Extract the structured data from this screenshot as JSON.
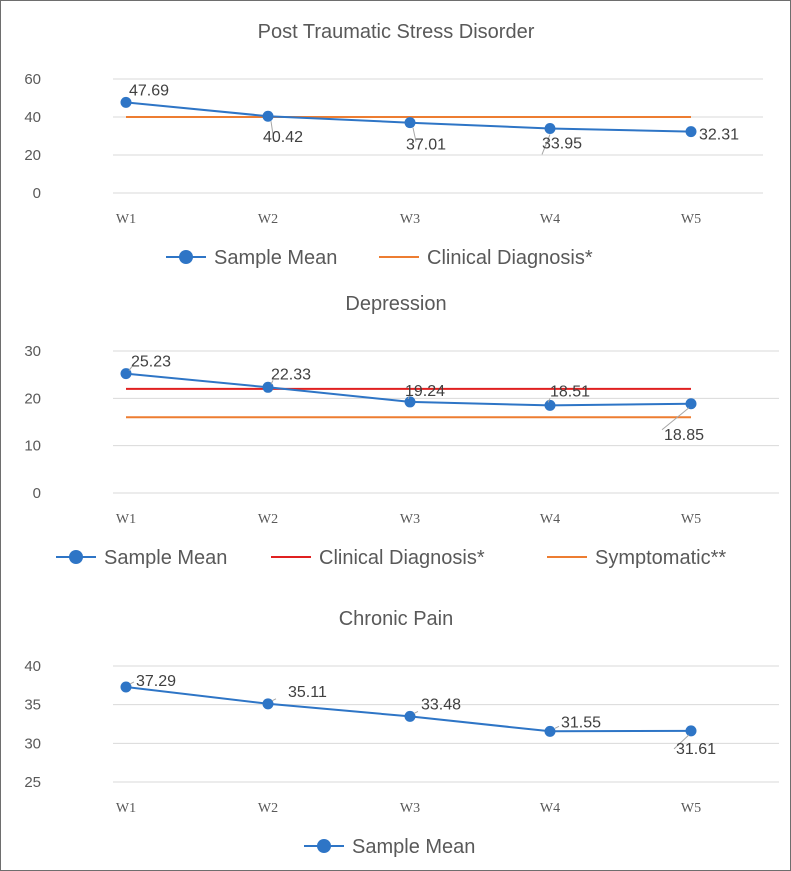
{
  "chart_data": [
    {
      "type": "line",
      "title": "Post Traumatic Stress Disorder",
      "categories": [
        "W1",
        "W2",
        "W3",
        "W4",
        "W5"
      ],
      "yticks": [
        0,
        20,
        40,
        60
      ],
      "ylim": [
        0,
        60
      ],
      "grid": true,
      "legend_position": "bottom",
      "series": [
        {
          "name": "Sample Mean",
          "values": [
            47.69,
            40.42,
            37.01,
            33.95,
            32.31
          ],
          "labels": [
            "47.69",
            "40.42",
            "37.01",
            "33.95",
            "32.31"
          ],
          "color": "#2e75c6",
          "markers": true
        },
        {
          "name": "Clinical Diagnosis*",
          "values": [
            40,
            40,
            40,
            40,
            40
          ],
          "color": "#ed7d31",
          "markers": false
        }
      ]
    },
    {
      "type": "line",
      "title": "Depression",
      "categories": [
        "W1",
        "W2",
        "W3",
        "W4",
        "W5"
      ],
      "yticks": [
        0,
        10,
        20,
        30
      ],
      "ylim": [
        0,
        30
      ],
      "grid": true,
      "legend_position": "bottom",
      "series": [
        {
          "name": "Sample Mean",
          "values": [
            25.23,
            22.33,
            19.24,
            18.51,
            18.85
          ],
          "labels": [
            "25.23",
            "22.33",
            "19.24",
            "18.51",
            "18.85"
          ],
          "color": "#2e75c6",
          "markers": true
        },
        {
          "name": "Clinical Diagnosis*",
          "values": [
            22,
            22,
            22,
            22,
            22
          ],
          "color": "#e02020",
          "markers": false
        },
        {
          "name": "Symptomatic**",
          "values": [
            16,
            16,
            16,
            16,
            16
          ],
          "color": "#ed7d31",
          "markers": false
        }
      ]
    },
    {
      "type": "line",
      "title": "Chronic Pain",
      "categories": [
        "W1",
        "W2",
        "W3",
        "W4",
        "W5"
      ],
      "yticks": [
        25,
        30,
        35,
        40
      ],
      "ylim": [
        25,
        40
      ],
      "grid": true,
      "legend_position": "bottom",
      "series": [
        {
          "name": "Sample Mean",
          "values": [
            37.29,
            35.11,
            33.48,
            31.55,
            31.61
          ],
          "labels": [
            "37.29",
            "35.11",
            "33.48",
            "31.55",
            "31.61"
          ],
          "color": "#2e75c6",
          "markers": true
        }
      ]
    }
  ]
}
